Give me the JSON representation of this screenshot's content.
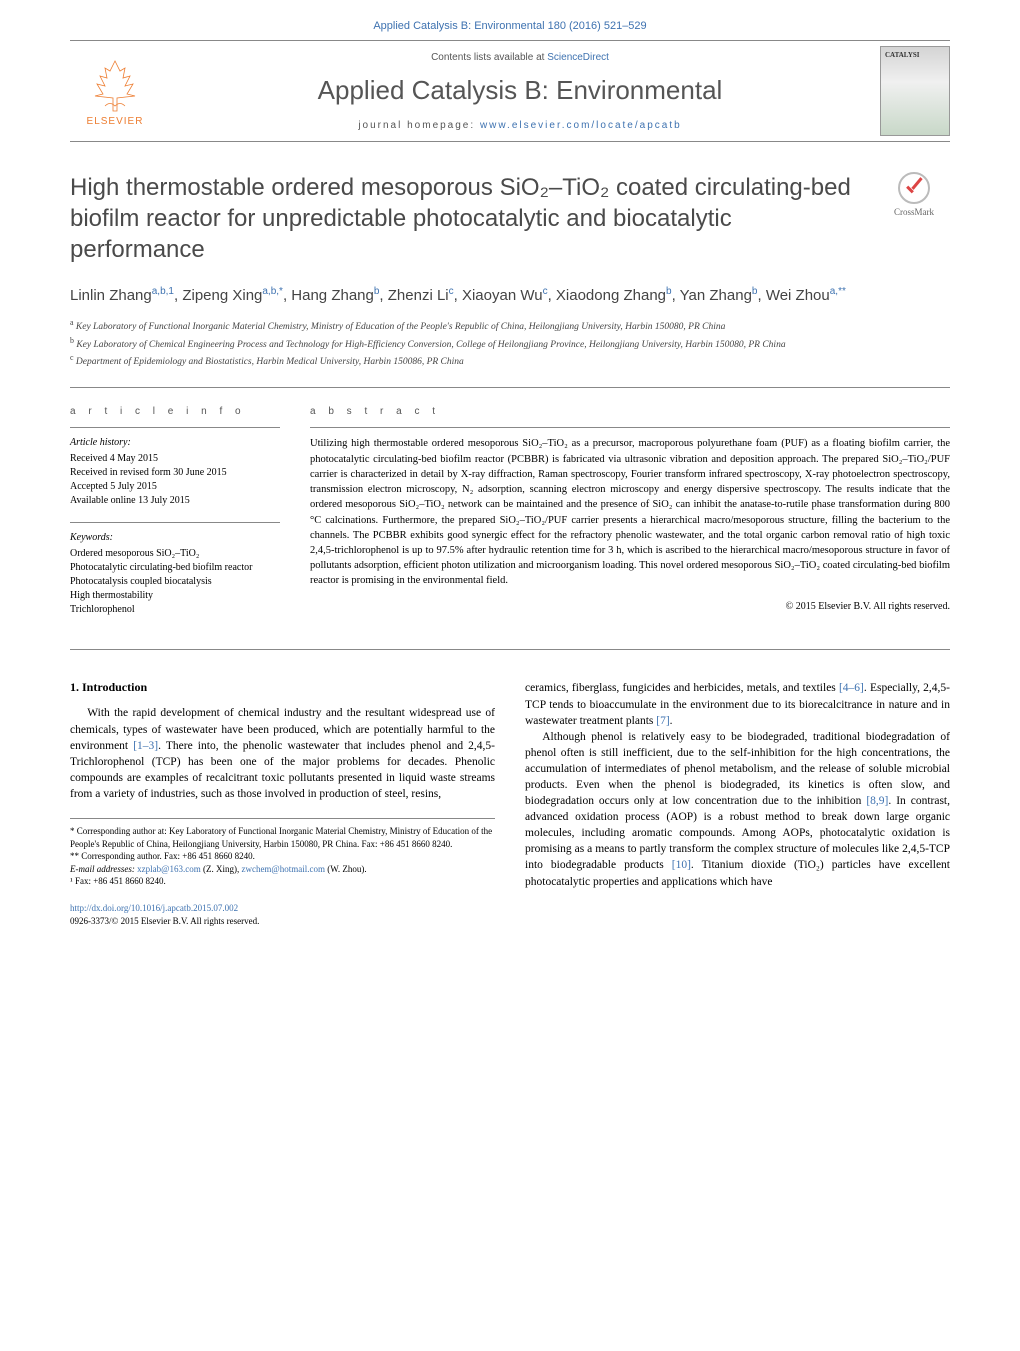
{
  "header": {
    "citation_link": "Applied Catalysis B: Environmental 180 (2016) 521–529",
    "contents_text": "Contents lists available at ",
    "contents_link": "ScienceDirect",
    "journal_name": "Applied Catalysis B: Environmental",
    "homepage_label": "journal homepage: ",
    "homepage_url": "www.elsevier.com/locate/apcatb",
    "publisher": "ELSEVIER",
    "cover_text": "CATALYSI"
  },
  "crossmark": {
    "label": "CrossMark"
  },
  "title": "High thermostable ordered mesoporous SiO₂–TiO₂ coated circulating-bed biofilm reactor for unpredictable photocatalytic and biocatalytic performance",
  "authors_html": "Linlin Zhang<sup>a,b,1</sup>, Zipeng Xing<sup>a,b,*</sup>, Hang Zhang<sup>b</sup>, Zhenzi Li<sup>c</sup>, Xiaoyan Wu<sup>c</sup>, Xiaodong Zhang<sup>b</sup>, Yan Zhang<sup>b</sup>, Wei Zhou<sup>a,**</sup>",
  "affiliations": [
    {
      "sup": "a",
      "text": "Key Laboratory of Functional Inorganic Material Chemistry, Ministry of Education of the People's Republic of China, Heilongjiang University, Harbin 150080, PR China"
    },
    {
      "sup": "b",
      "text": "Key Laboratory of Chemical Engineering Process and Technology for High-Efficiency Conversion, College of Heilongjiang Province, Heilongjiang University, Harbin 150080, PR China"
    },
    {
      "sup": "c",
      "text": "Department of Epidemiology and Biostatistics, Harbin Medical University, Harbin 150086, PR China"
    }
  ],
  "info": {
    "heading": "a r t i c l e   i n f o",
    "history_label": "Article history:",
    "history": [
      "Received 4 May 2015",
      "Received in revised form 30 June 2015",
      "Accepted 5 July 2015",
      "Available online 13 July 2015"
    ],
    "keywords_label": "Keywords:",
    "keywords": [
      "Ordered mesoporous SiO₂–TiO₂",
      "Photocatalytic circulating-bed biofilm reactor",
      "Photocatalysis coupled biocatalysis",
      "High thermostability",
      "Trichlorophenol"
    ]
  },
  "abstract": {
    "heading": "a b s t r a c t",
    "text": "Utilizing high thermostable ordered mesoporous SiO₂–TiO₂ as a precursor, macroporous polyurethane foam (PUF) as a floating biofilm carrier, the photocatalytic circulating-bed biofilm reactor (PCBBR) is fabricated via ultrasonic vibration and deposition approach. The prepared SiO₂–TiO₂/PUF carrier is characterized in detail by X-ray diffraction, Raman spectroscopy, Fourier transform infrared spectroscopy, X-ray photoelectron spectroscopy, transmission electron microscopy, N₂ adsorption, scanning electron microscopy and energy dispersive spectroscopy. The results indicate that the ordered mesoporous SiO₂–TiO₂ network can be maintained and the presence of SiO₂ can inhibit the anatase-to-rutile phase transformation during 800 °C calcinations. Furthermore, the prepared SiO₂–TiO₂/PUF carrier presents a hierarchical macro/mesoporous structure, filling the bacterium to the channels. The PCBBR exhibits good synergic effect for the refractory phenolic wastewater, and the total organic carbon removal ratio of high toxic 2,4,5-trichlorophenol is up to 97.5% after hydraulic retention time for 3 h, which is ascribed to the hierarchical macro/mesoporous structure in favor of pollutants adsorption, efficient photon utilization and microorganism loading. This novel ordered mesoporous SiO₂–TiO₂ coated circulating-bed biofilm reactor is promising in the environmental field.",
    "copyright": "© 2015 Elsevier B.V. All rights reserved."
  },
  "body": {
    "heading1": "1. Introduction",
    "col1p1": "With the rapid development of chemical industry and the resultant widespread use of chemicals, types of wastewater have been produced, which are potentially harmful to the environment [1–3]. There into, the phenolic wastewater that includes phenol and 2,4,5-Trichlorophenol (TCP) has been one of the major problems for decades. Phenolic compounds are examples of recalcitrant toxic pollutants presented in liquid waste streams from a variety of industries, such as those involved in production of steel, resins,",
    "col2p1": "ceramics, fiberglass, fungicides and herbicides, metals, and textiles [4–6]. Especially, 2,4,5-TCP tends to bioaccumulate in the environment due to its biorecalcitrance in nature and in wastewater treatment plants [7].",
    "col2p2": "Although phenol is relatively easy to be biodegraded, traditional biodegradation of phenol often is still inefficient, due to the self-inhibition for the high concentrations, the accumulation of intermediates of phenol metabolism, and the release of soluble microbial products. Even when the phenol is biodegraded, its kinetics is often slow, and biodegradation occurs only at low concentration due to the inhibition [8,9]. In contrast, advanced oxidation process (AOP) is a robust method to break down large organic molecules, including aromatic compounds. Among AOPs, photocatalytic oxidation is promising as a means to partly transform the complex structure of molecules like 2,4,5-TCP into biodegradable products [10]. Titanium dioxide (TiO₂) particles have excellent photocatalytic properties and applications which have",
    "refs": {
      "r1": "[1–3]",
      "r4": "[4–6]",
      "r7": "[7]",
      "r8": "[8,9]",
      "r10": "[10]"
    }
  },
  "footnotes": {
    "corr1": "* Corresponding author at: Key Laboratory of Functional Inorganic Material Chemistry, Ministry of Education of the People's Republic of China, Heilongjiang University, Harbin 150080, PR China. Fax: +86 451 8660 8240.",
    "corr2": "** Corresponding author. Fax: +86 451 8660 8240.",
    "email_label": "E-mail addresses: ",
    "email1": "xzplab@163.com",
    "email1_suffix": " (Z. Xing), ",
    "email2": "zwchem@hotmail.com",
    "email2_suffix": " (W. Zhou).",
    "fax": "¹ Fax: +86 451 8660 8240."
  },
  "footer": {
    "doi": "http://dx.doi.org/10.1016/j.apcatb.2015.07.002",
    "issn": "0926-3373/© 2015 Elsevier B.V. All rights reserved."
  },
  "colors": {
    "link": "#3e72b0",
    "heading_gray": "#555555",
    "rule": "#888888",
    "elsevier_orange": "#ed7d31"
  }
}
